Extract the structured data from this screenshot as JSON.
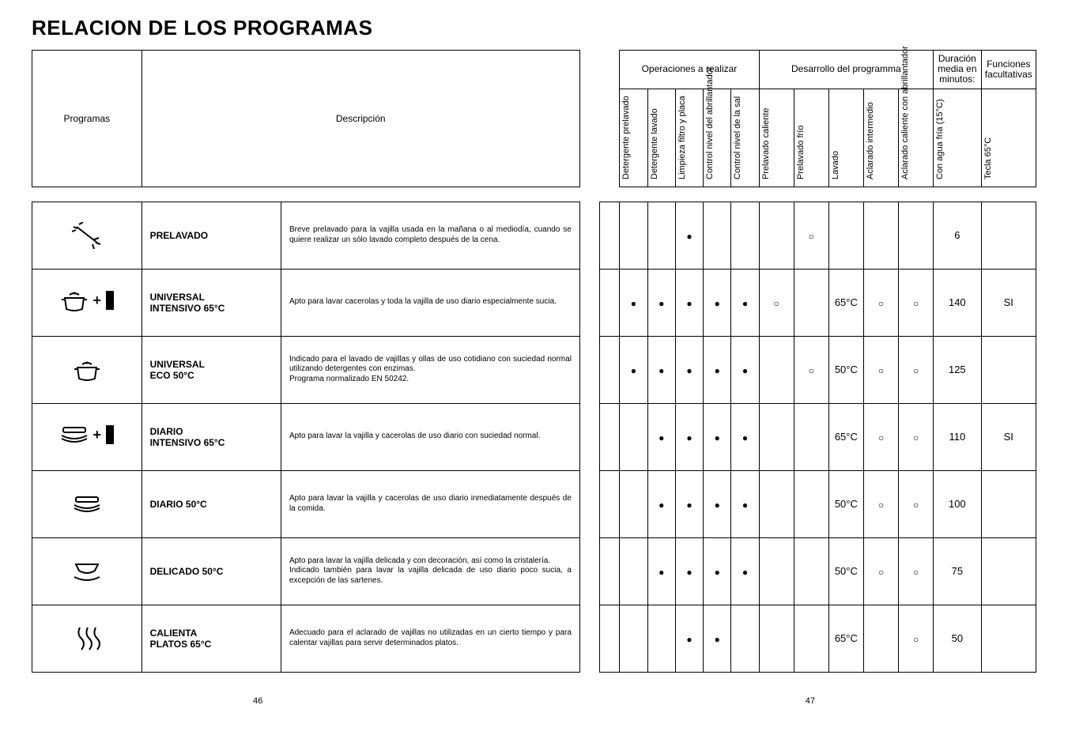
{
  "title": "RELACION DE LOS PROGRAMAS",
  "header": {
    "programas": "Programas",
    "descripcion": "Descripción",
    "group_ops": "Operaciones a realizar",
    "group_dev": "Desarrollo del programma",
    "group_dur": "Duración media en minutos:",
    "group_fun": "Funciones facultativas",
    "ops": [
      "Detergente prelavado",
      "Detergente lavado",
      "Limpieza filtro y placa",
      "Control nivel del abrillantador",
      "Control nivel de la sal"
    ],
    "dev": [
      "Prelavado caliente",
      "Prelavado frío",
      "Lavado",
      "Aclarado intermedio",
      "Aclarado caliente con abrillantador"
    ],
    "dur": "Con agua fría (15°C)",
    "fun": "Tecla 65°C"
  },
  "rows": [
    {
      "icon": "spray",
      "name": "PRELAVADO",
      "desc": "Breve prelavado para la vajilla usada en la mañana o al mediodía, cuando se quiere realizar un sólo lavado completo después de la cena.",
      "ops": [
        "",
        "",
        "dot",
        "",
        ""
      ],
      "dev": [
        "",
        "ring",
        "",
        "",
        ""
      ],
      "dur": "6",
      "fun": ""
    },
    {
      "icon": "pot-plus",
      "name": "UNIVERSAL\nINTENSIVO 65°C",
      "desc": "Apto para lavar cacerolas y toda la vajilla de uso diario especialmente sucia.",
      "ops": [
        "dot",
        "dot",
        "dot",
        "dot",
        "dot"
      ],
      "dev": [
        "ring",
        "",
        "65°C",
        "ring",
        "ring"
      ],
      "dur": "140",
      "fun": "SI"
    },
    {
      "icon": "pot",
      "name": "UNIVERSAL\nECO 50°C",
      "desc": "Indicado para el lavado de vajillas y ollas de uso cotidiano con suciedad normal utilizando detergentes con enzimas.\nPrograma normalizado EN 50242.",
      "ops": [
        "dot",
        "dot",
        "dot",
        "dot",
        "dot"
      ],
      "dev": [
        "",
        "ring",
        "50°C",
        "ring",
        "ring"
      ],
      "dur": "125",
      "fun": ""
    },
    {
      "icon": "plates-plus",
      "name": "DIARIO\nINTENSIVO 65°C",
      "desc": "Apto para lavar la vajilla y cacerolas de uso diario  con suciedad normal.",
      "ops": [
        "",
        "dot",
        "dot",
        "dot",
        "dot"
      ],
      "dev": [
        "",
        "",
        "65°C",
        "ring",
        "ring"
      ],
      "dur": "110",
      "fun": "SI"
    },
    {
      "icon": "plates",
      "name": "DIARIO 50°C",
      "desc": "Apto para lavar la vajilla y cacerolas de uso diario inmediatamente después de la comida.",
      "ops": [
        "",
        "dot",
        "dot",
        "dot",
        "dot"
      ],
      "dev": [
        "",
        "",
        "50°C",
        "ring",
        "ring"
      ],
      "dur": "100",
      "fun": ""
    },
    {
      "icon": "glass",
      "name": "DELICADO 50°C",
      "desc": "Apto para lavar la vajilla delicada y con decoración, así como la cristalería.\nIndicado también para lavar la vajilla delicada de uso diario poco sucia, a excepción de las sartenes.",
      "ops": [
        "",
        "dot",
        "dot",
        "dot",
        "dot"
      ],
      "dev": [
        "",
        "",
        "50°C",
        "ring",
        "ring"
      ],
      "dur": "75",
      "fun": ""
    },
    {
      "icon": "heat",
      "name": "CALIENTA\nPLATOS 65°C",
      "desc": "Adecuado para el aclarado de vajillas no utilizadas en un cierto tiempo y para calentar vajillas para servir determinados platos.",
      "ops": [
        "",
        "",
        "dot",
        "dot",
        ""
      ],
      "dev": [
        "",
        "",
        "65°C",
        "",
        "ring"
      ],
      "dur": "50",
      "fun": ""
    }
  ],
  "page_left": "46",
  "page_right": "47"
}
